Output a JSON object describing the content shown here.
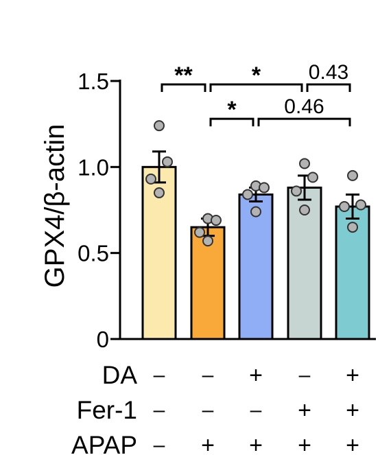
{
  "chart_data": {
    "type": "bar",
    "ylabel": "GPX4/β-actin",
    "ylim": [
      0,
      1.5
    ],
    "yticks": [
      "0",
      "0.5",
      "1.0",
      "1.5"
    ],
    "grid": false,
    "categories": [
      "Control",
      "APAP",
      "DA+APAP",
      "Fer-1+APAP",
      "DA+Fer-1+APAP"
    ],
    "values": [
      1.0,
      0.65,
      0.84,
      0.88,
      0.77
    ],
    "errors": [
      0.09,
      0.05,
      0.04,
      0.07,
      0.07
    ],
    "points": [
      [
        1.24,
        1.03,
        0.93,
        0.85
      ],
      [
        0.7,
        0.69,
        0.62,
        0.57
      ],
      [
        0.89,
        0.88,
        0.84,
        0.74
      ],
      [
        1.02,
        0.94,
        0.86,
        0.75
      ],
      [
        0.95,
        0.78,
        0.77,
        0.65
      ]
    ],
    "colors": [
      "#FBE9AE",
      "#F9A83A",
      "#8FAEF6",
      "#C6D5D2",
      "#7ECBD2"
    ],
    "point_color": "#B3B3B3",
    "conditions": [
      {
        "label": "DA",
        "signs": [
          "–",
          "–",
          "+",
          "–",
          "+"
        ]
      },
      {
        "label": "Fer-1",
        "signs": [
          "–",
          "–",
          "–",
          "+",
          "+"
        ]
      },
      {
        "label": "APAP",
        "signs": [
          "–",
          "+",
          "+",
          "+",
          "+"
        ]
      }
    ],
    "annotations": [
      {
        "from": 0,
        "to": 1,
        "y": 1.48,
        "label": "**"
      },
      {
        "from": 1,
        "to": 3,
        "y": 1.48,
        "label": "*"
      },
      {
        "from": 3,
        "to": 4,
        "y": 1.48,
        "label": "0.43"
      },
      {
        "from": 1,
        "to": 2,
        "y": 1.28,
        "label": "*"
      },
      {
        "from": 2,
        "to": 4,
        "y": 1.28,
        "label": "0.46"
      }
    ]
  }
}
